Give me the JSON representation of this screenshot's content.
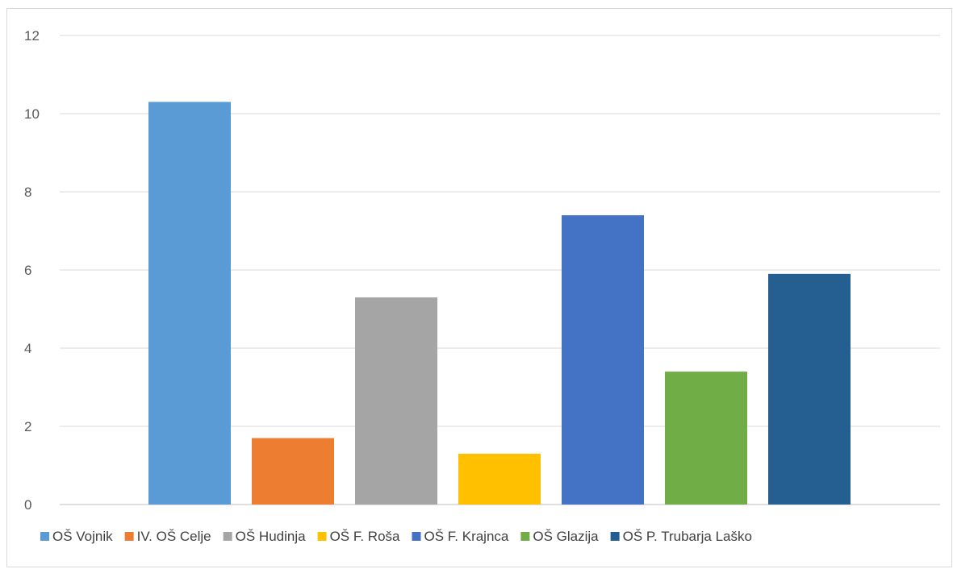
{
  "chart_data": {
    "type": "bar",
    "title": "",
    "xlabel": "",
    "ylabel": "",
    "ylim": [
      0,
      12
    ],
    "yticks": [
      0,
      2,
      4,
      6,
      8,
      10,
      12
    ],
    "grid": true,
    "legend_position": "bottom",
    "series": [
      {
        "name": "OŠ Vojnik",
        "value": 10.3,
        "color": "#5b9bd5"
      },
      {
        "name": "IV. OŠ Celje",
        "value": 1.7,
        "color": "#ed7d31"
      },
      {
        "name": "OŠ Hudinja",
        "value": 5.3,
        "color": "#a5a5a5"
      },
      {
        "name": "OŠ F. Roša",
        "value": 1.3,
        "color": "#ffc000"
      },
      {
        "name": "OŠ F. Krajnca",
        "value": 7.4,
        "color": "#4472c4"
      },
      {
        "name": "OŠ Glazija",
        "value": 3.4,
        "color": "#70ad47"
      },
      {
        "name": "OŠ P. Trubarja Laško",
        "value": 5.9,
        "color": "#255e91"
      }
    ]
  }
}
